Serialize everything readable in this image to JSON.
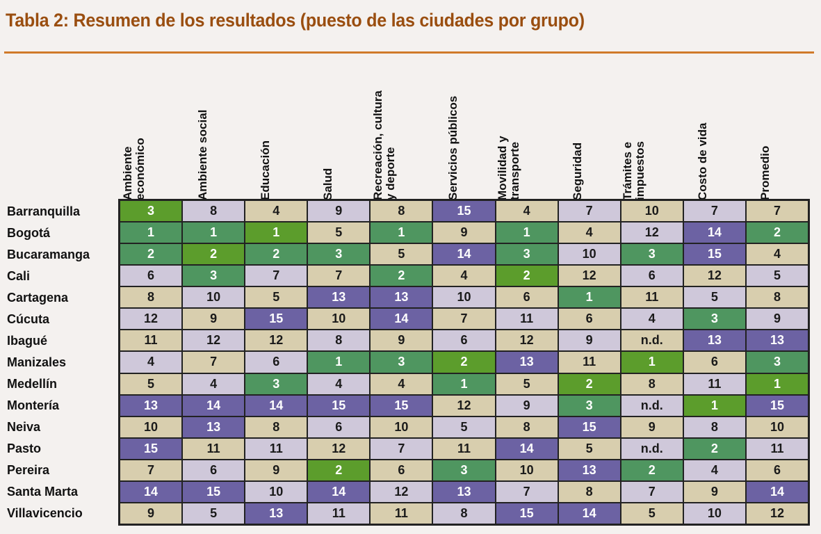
{
  "title": "Tabla 2:  Resumen de los resultados (puesto de las ciudades por grupo)",
  "columns": [
    "Ambiente\neconómico",
    "Ambiente social",
    "Educación",
    "Salud",
    "Recreación, cultura\ny deporte",
    "Servicios públicos",
    "Movilidad y\ntransporte",
    "Seguridad",
    "Trámites e\nimpuestos",
    "Costo de vida",
    "Promedio"
  ],
  "rows": [
    {
      "city": "Barranquilla",
      "values": [
        "3",
        "8",
        "4",
        "9",
        "8",
        "15",
        "4",
        "7",
        "10",
        "7",
        "7"
      ]
    },
    {
      "city": "Bogotá",
      "values": [
        "1",
        "1",
        "1",
        "5",
        "1",
        "9",
        "1",
        "4",
        "12",
        "14",
        "2"
      ]
    },
    {
      "city": "Bucaramanga",
      "values": [
        "2",
        "2",
        "2",
        "3",
        "5",
        "14",
        "3",
        "10",
        "3",
        "15",
        "4"
      ]
    },
    {
      "city": "Cali",
      "values": [
        "6",
        "3",
        "7",
        "7",
        "2",
        "4",
        "2",
        "12",
        "6",
        "12",
        "5"
      ]
    },
    {
      "city": "Cartagena",
      "values": [
        "8",
        "10",
        "5",
        "13",
        "13",
        "10",
        "6",
        "1",
        "11",
        "5",
        "8"
      ]
    },
    {
      "city": "Cúcuta",
      "values": [
        "12",
        "9",
        "15",
        "10",
        "14",
        "7",
        "11",
        "6",
        "4",
        "3",
        "9"
      ]
    },
    {
      "city": "Ibagué",
      "values": [
        "11",
        "12",
        "12",
        "8",
        "9",
        "6",
        "12",
        "9",
        "n.d.",
        "13",
        "13"
      ]
    },
    {
      "city": "Manizales",
      "values": [
        "4",
        "7",
        "6",
        "1",
        "3",
        "2",
        "13",
        "11",
        "1",
        "6",
        "3"
      ]
    },
    {
      "city": "Medellín",
      "values": [
        "5",
        "4",
        "3",
        "4",
        "4",
        "1",
        "5",
        "2",
        "8",
        "11",
        "1"
      ]
    },
    {
      "city": "Montería",
      "values": [
        "13",
        "14",
        "14",
        "15",
        "15",
        "12",
        "9",
        "3",
        "n.d.",
        "1",
        "15"
      ]
    },
    {
      "city": "Neiva",
      "values": [
        "10",
        "13",
        "8",
        "6",
        "10",
        "5",
        "8",
        "15",
        "9",
        "8",
        "10"
      ]
    },
    {
      "city": "Pasto",
      "values": [
        "15",
        "11",
        "11",
        "12",
        "7",
        "11",
        "14",
        "5",
        "n.d.",
        "2",
        "11"
      ]
    },
    {
      "city": "Pereira",
      "values": [
        "7",
        "6",
        "9",
        "2",
        "6",
        "3",
        "10",
        "13",
        "2",
        "4",
        "6"
      ]
    },
    {
      "city": "Santa Marta",
      "values": [
        "14",
        "15",
        "10",
        "14",
        "12",
        "13",
        "7",
        "8",
        "7",
        "9",
        "14"
      ]
    },
    {
      "city": "Villavicencio",
      "values": [
        "9",
        "5",
        "13",
        "11",
        "11",
        "8",
        "15",
        "14",
        "5",
        "10",
        "12"
      ]
    }
  ]
}
